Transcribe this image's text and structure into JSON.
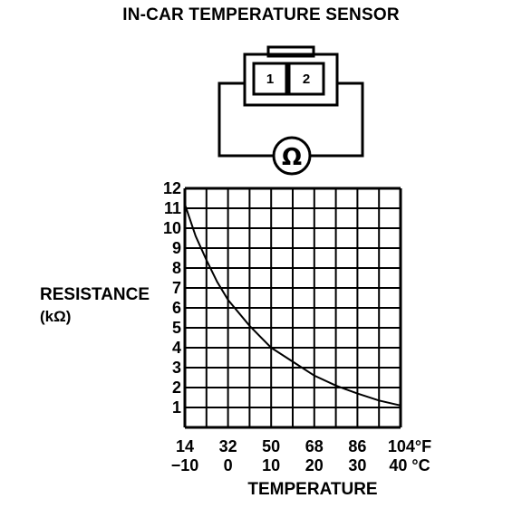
{
  "title": "IN-CAR TEMPERATURE SENSOR",
  "connector": {
    "pin1": "1",
    "pin2": "2",
    "meter_symbol": "Ω"
  },
  "axis": {
    "ylabel": "RESISTANCE",
    "yunit": "(kΩ)",
    "xlabel": "TEMPERATURE",
    "fahrenheit_ticks": [
      "14",
      "32",
      "50",
      "68",
      "86",
      "104°F"
    ],
    "celsius_ticks": [
      "−10",
      "0",
      "10",
      "20",
      "30",
      "40 °C"
    ]
  },
  "chart_data": {
    "type": "line",
    "xlabel": "TEMPERATURE",
    "ylabel": "RESISTANCE (kΩ)",
    "x_unit": "°C",
    "xlim": [
      -10,
      40
    ],
    "ylim": [
      0,
      12
    ],
    "y_ticks": [
      1,
      2,
      3,
      4,
      5,
      6,
      7,
      8,
      9,
      10,
      11,
      12
    ],
    "grid": true,
    "series": [
      {
        "x": [
          -10,
          -7.5,
          -5,
          -2.5,
          0,
          5,
          10,
          15,
          20,
          25,
          30,
          35,
          40
        ],
        "values": [
          11.2,
          9.6,
          8.4,
          7.3,
          6.4,
          5.1,
          4.0,
          3.3,
          2.6,
          2.1,
          1.7,
          1.35,
          1.1
        ]
      }
    ]
  }
}
